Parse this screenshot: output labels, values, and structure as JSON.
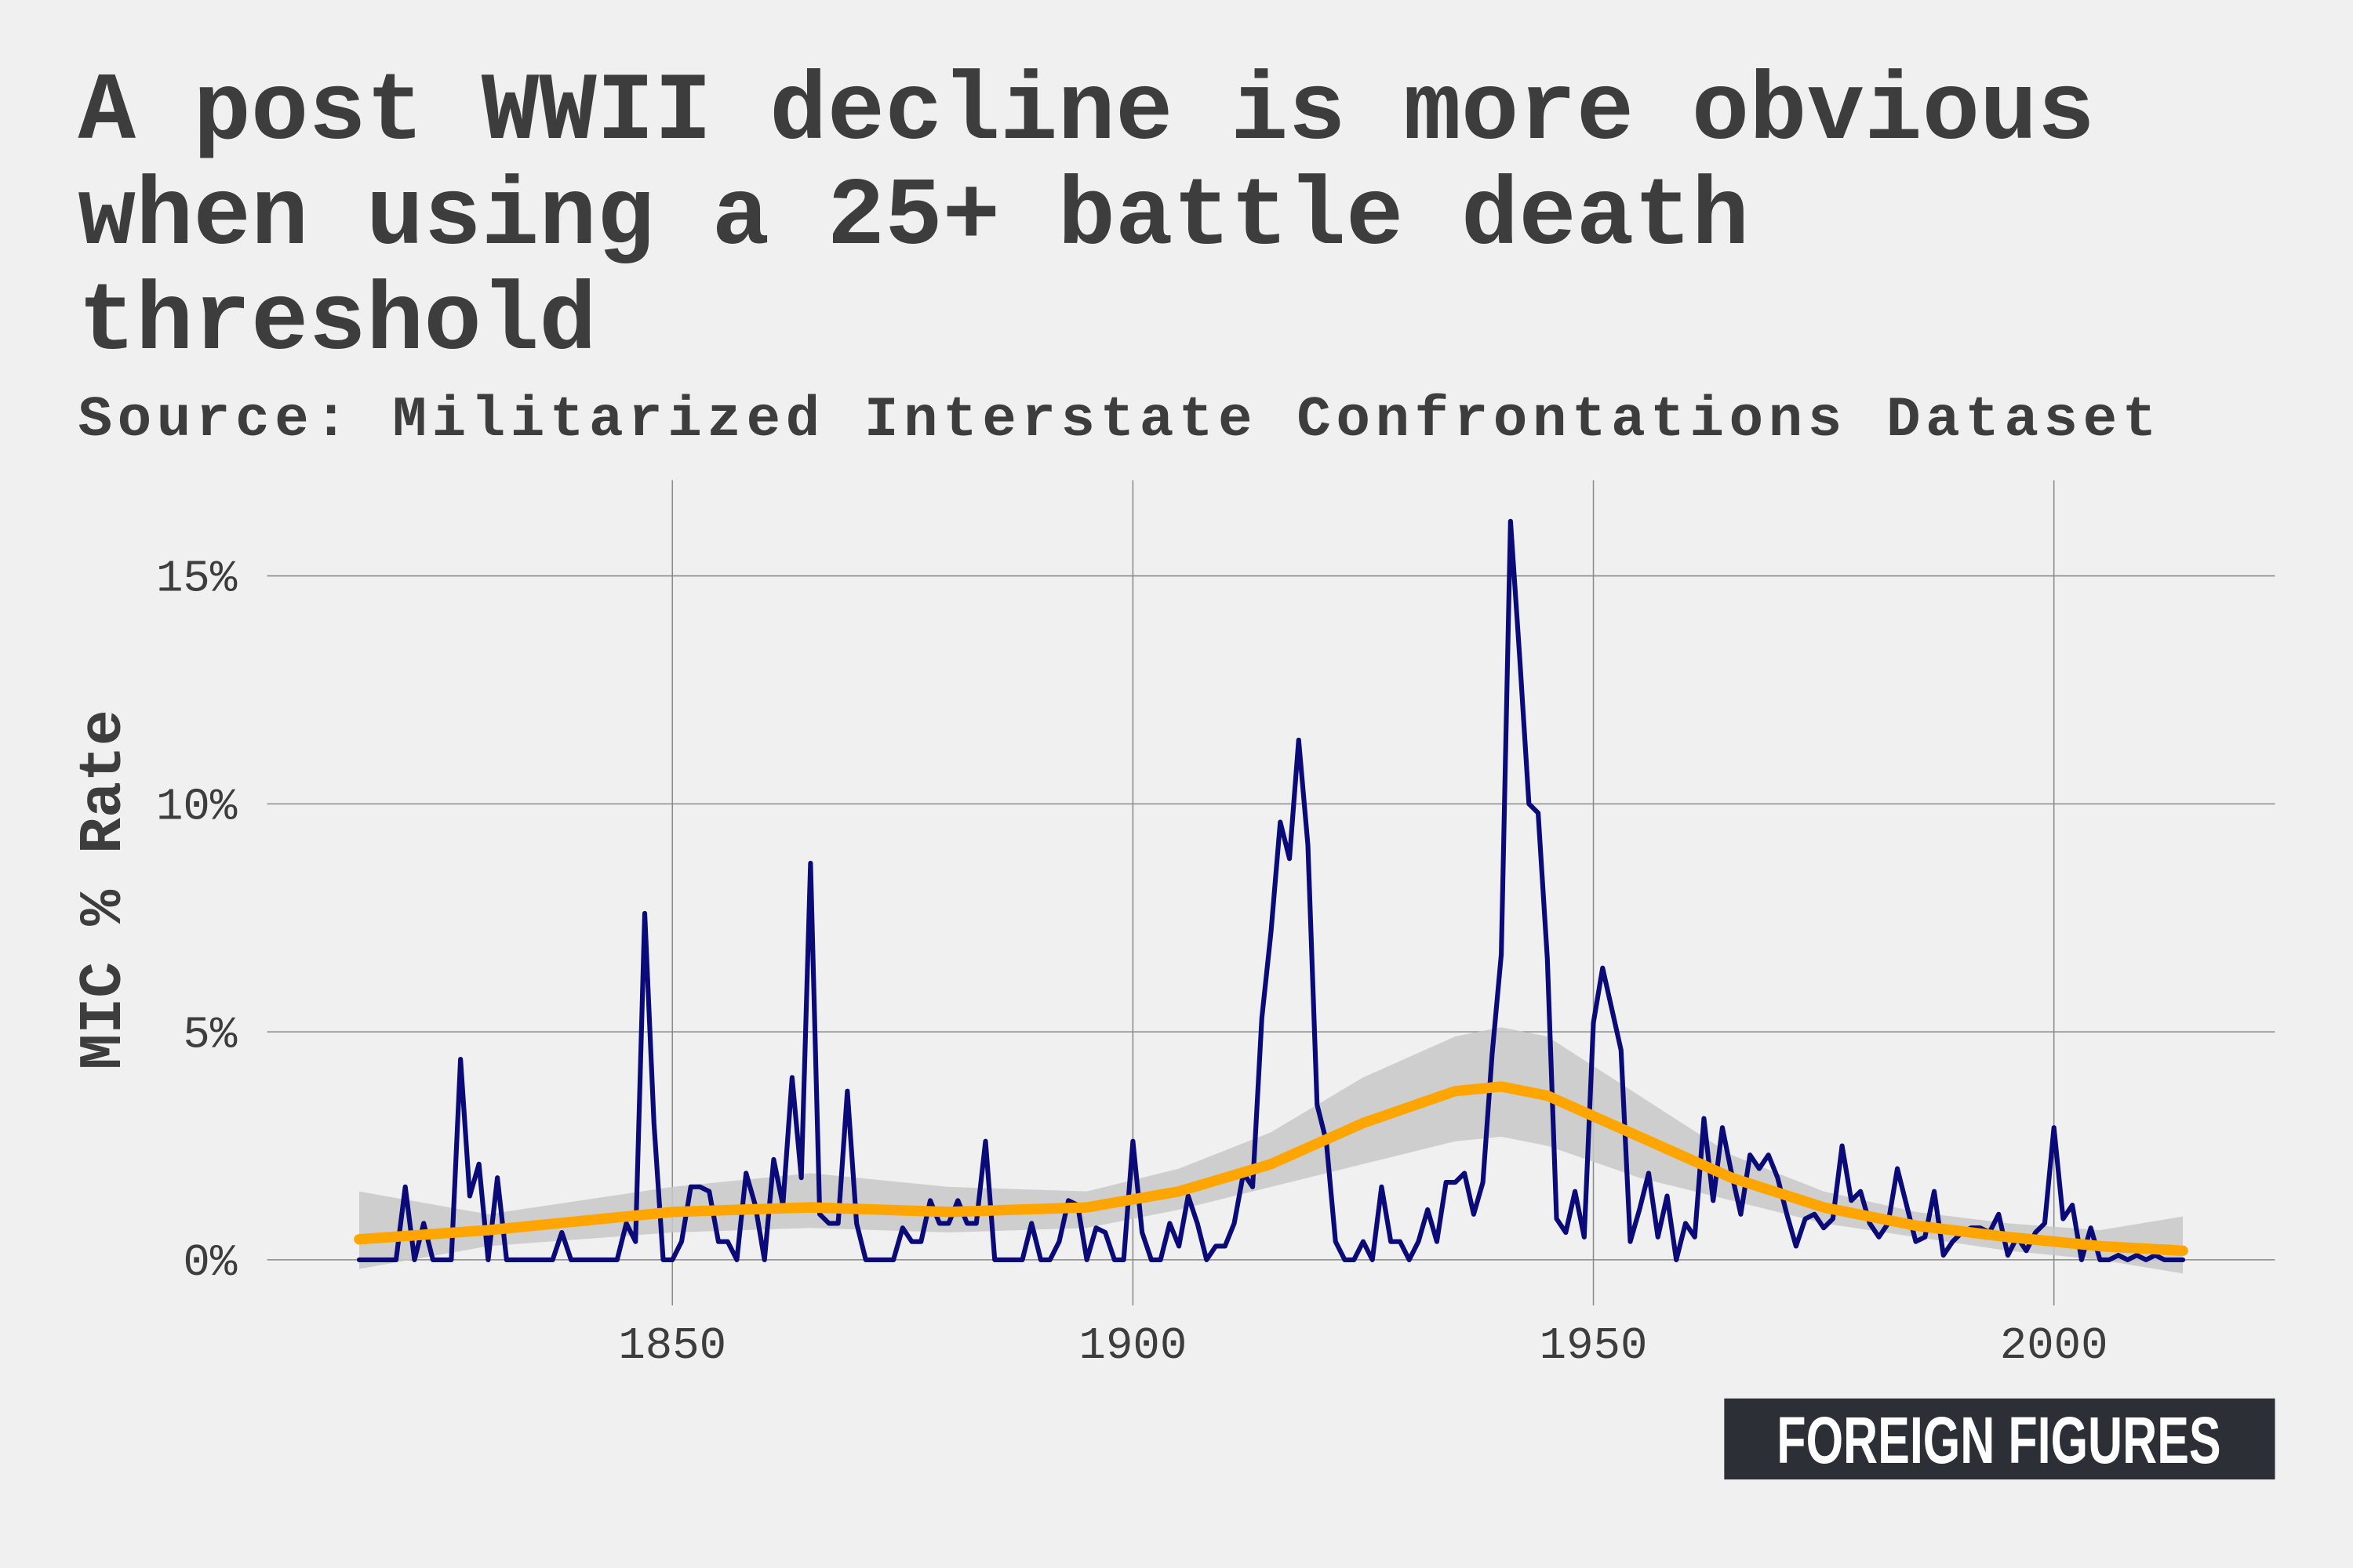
{
  "chart_data": {
    "type": "line",
    "title": [
      "A post WWII decline is more obvious",
      "when using a 25+ battle death",
      "threshold"
    ],
    "subtitle": "Source: Militarized Interstate Confrontations Dataset",
    "y_label": "MIC % Rate",
    "logo": "FOREIGN FIGURES",
    "xlim": [
      1806,
      2024
    ],
    "ylim": [
      -1,
      17.1
    ],
    "xticks": [
      1850,
      1900,
      1950,
      2000
    ],
    "yticks": [
      {
        "value": 0,
        "label": "0%"
      },
      {
        "value": 5,
        "label": "5%"
      },
      {
        "value": 10,
        "label": "10%"
      },
      {
        "value": 15,
        "label": "15%"
      }
    ],
    "grid": true,
    "series": [
      {
        "color": "#0a0a78",
        "x": [
          1816,
          1817,
          1818,
          1819,
          1820,
          1821,
          1822,
          1823,
          1824,
          1825,
          1826,
          1827,
          1828,
          1829,
          1830,
          1831,
          1832,
          1833,
          1834,
          1835,
          1836,
          1837,
          1838,
          1839,
          1840,
          1841,
          1842,
          1843,
          1844,
          1845,
          1846,
          1847,
          1848,
          1849,
          1850,
          1851,
          1852,
          1853,
          1854,
          1855,
          1856,
          1857,
          1858,
          1859,
          1860,
          1861,
          1862,
          1863,
          1864,
          1865,
          1866,
          1867,
          1868,
          1869,
          1870,
          1871,
          1872,
          1873,
          1874,
          1875,
          1876,
          1877,
          1878,
          1879,
          1880,
          1881,
          1882,
          1883,
          1884,
          1885,
          1886,
          1887,
          1888,
          1889,
          1890,
          1891,
          1892,
          1893,
          1894,
          1895,
          1896,
          1897,
          1898,
          1899,
          1900,
          1901,
          1902,
          1903,
          1904,
          1905,
          1906,
          1907,
          1908,
          1909,
          1910,
          1911,
          1912,
          1913,
          1914,
          1915,
          1916,
          1917,
          1918,
          1919,
          1920,
          1921,
          1922,
          1923,
          1924,
          1925,
          1926,
          1927,
          1928,
          1929,
          1930,
          1931,
          1932,
          1933,
          1934,
          1935,
          1936,
          1937,
          1938,
          1939,
          1940,
          1941,
          1942,
          1943,
          1944,
          1945,
          1946,
          1947,
          1948,
          1949,
          1950,
          1951,
          1952,
          1953,
          1954,
          1955,
          1956,
          1957,
          1958,
          1959,
          1960,
          1961,
          1962,
          1963,
          1964,
          1965,
          1966,
          1967,
          1968,
          1969,
          1970,
          1971,
          1972,
          1973,
          1974,
          1975,
          1976,
          1977,
          1978,
          1979,
          1980,
          1981,
          1982,
          1983,
          1984,
          1985,
          1986,
          1987,
          1988,
          1989,
          1990,
          1991,
          1992,
          1993,
          1994,
          1995,
          1996,
          1997,
          1998,
          1999,
          2000,
          2001,
          2002,
          2003,
          2004,
          2005,
          2006,
          2007,
          2008,
          2009,
          2010,
          2011,
          2012,
          2013,
          2014
        ],
        "values": [
          0,
          0,
          0,
          0,
          0,
          1.6,
          0,
          0.8,
          0,
          0,
          0,
          4.4,
          1.4,
          2.1,
          0,
          1.8,
          0,
          0,
          0,
          0,
          0,
          0,
          0.6,
          0,
          0,
          0,
          0,
          0,
          0,
          0.8,
          0.4,
          7.6,
          3.0,
          0,
          0,
          0.4,
          1.6,
          1.6,
          1.5,
          0.4,
          0.4,
          0,
          1.9,
          1.2,
          0,
          2.2,
          1.2,
          4.0,
          1.8,
          8.7,
          1.0,
          0.8,
          0.8,
          3.7,
          0.8,
          0,
          0,
          0,
          0,
          0.7,
          0.4,
          0.4,
          1.3,
          0.8,
          0.8,
          1.3,
          0.8,
          0.8,
          2.6,
          0,
          0,
          0,
          0,
          0.8,
          0,
          0,
          0.4,
          1.3,
          1.2,
          0,
          0.7,
          0.6,
          0,
          0,
          2.6,
          0.6,
          0,
          0,
          0.8,
          0.3,
          1.4,
          0.8,
          0,
          0.3,
          0.3,
          0.8,
          1.9,
          1.6,
          5.3,
          7.2,
          9.6,
          8.8,
          11.4,
          9.1,
          3.4,
          2.6,
          0.4,
          0,
          0,
          0.4,
          0,
          1.6,
          0.4,
          0.4,
          0,
          0.4,
          1.1,
          0.4,
          1.7,
          1.7,
          1.9,
          1.0,
          1.7,
          4.5,
          6.7,
          16.2,
          13.2,
          10.0,
          9.8,
          6.6,
          0.9,
          0.6,
          1.5,
          0.5,
          5.2,
          6.4,
          5.5,
          4.6,
          0.4,
          1.1,
          1.9,
          0.5,
          1.4,
          0,
          0.8,
          0.5,
          3.1,
          1.3,
          2.9,
          1.9,
          1.0,
          2.3,
          2.0,
          2.3,
          1.8,
          1.0,
          0.3,
          0.9,
          1.0,
          0.7,
          0.9,
          2.5,
          1.3,
          1.5,
          0.8,
          0.5,
          0.8,
          2.0,
          1.2,
          0.4,
          0.5,
          1.5,
          0.1,
          0.4,
          0.6,
          0.7,
          0.7,
          0.6,
          1.0,
          0.1,
          0.5,
          0.2,
          0.6,
          0.8,
          2.9,
          0.9,
          1.2,
          0,
          0.7,
          0,
          0,
          0.1,
          0,
          0.1,
          0,
          0.1,
          0,
          0,
          0
        ]
      },
      {
        "color": "#ffa500",
        "band_color": "#c8c8c8",
        "x": [
          1816,
          1830,
          1850,
          1865,
          1880,
          1895,
          1905,
          1915,
          1925,
          1935,
          1940,
          1945,
          1955,
          1965,
          1975,
          1985,
          1995,
          2005,
          2014
        ],
        "values": [
          0.45,
          0.65,
          1.05,
          1.15,
          1.05,
          1.15,
          1.5,
          2.1,
          3.0,
          3.7,
          3.8,
          3.6,
          2.7,
          1.8,
          1.15,
          0.75,
          0.5,
          0.3,
          0.2
        ],
        "upper": [
          1.5,
          1.0,
          1.6,
          1.9,
          1.6,
          1.5,
          2.0,
          2.8,
          4.0,
          4.9,
          5.1,
          4.9,
          3.6,
          2.3,
          1.5,
          1.05,
          0.8,
          0.65,
          0.95
        ],
        "lower": [
          -0.2,
          0.3,
          0.6,
          0.7,
          0.6,
          0.7,
          1.1,
          1.6,
          2.1,
          2.6,
          2.7,
          2.5,
          1.8,
          1.3,
          0.8,
          0.5,
          0.2,
          0.0,
          -0.3
        ]
      }
    ]
  }
}
